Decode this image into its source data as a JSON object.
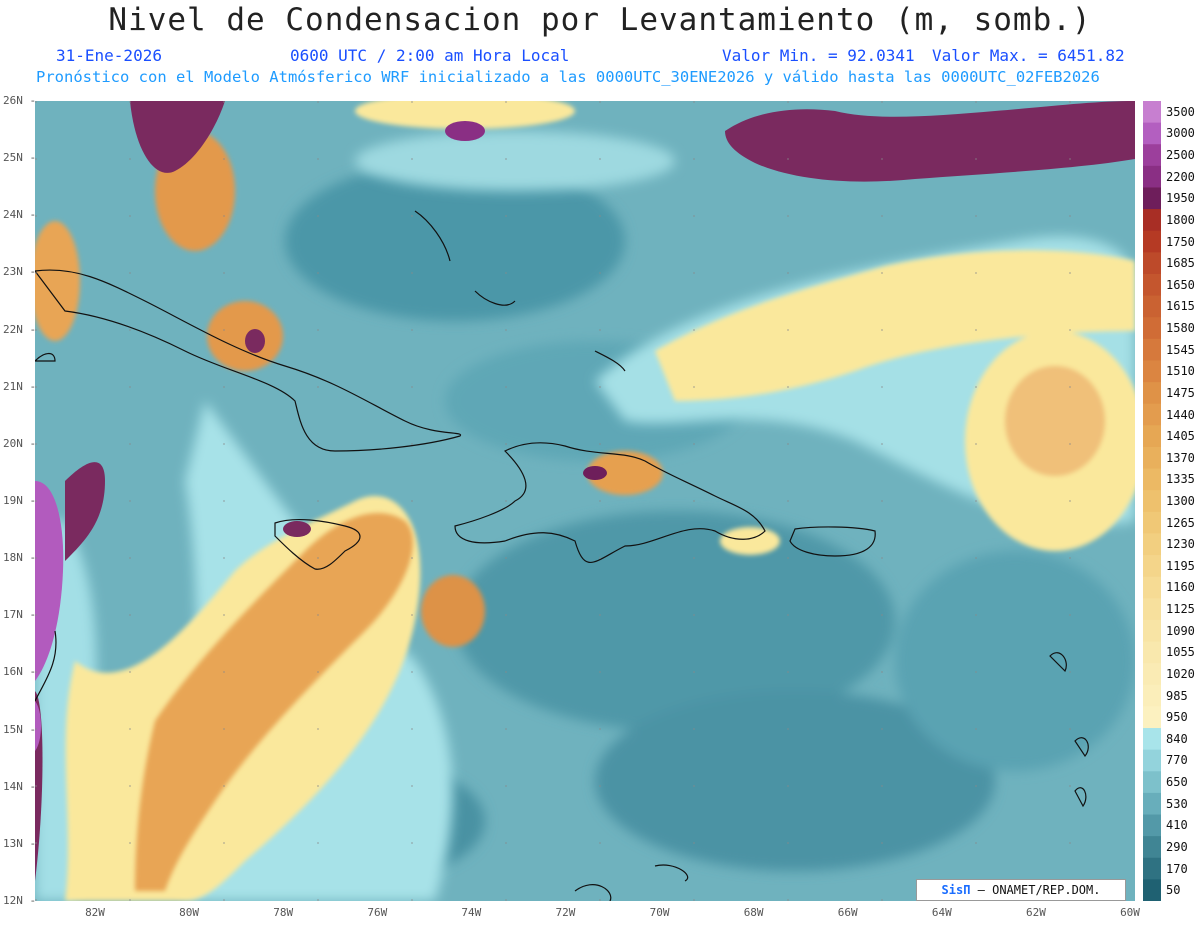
{
  "header": {
    "title": "Nivel de Condensacion por Levantamiento (m, somb.)",
    "date": "31-Ene-2026",
    "time": "0600 UTC / 2:00 am Hora Local",
    "min": "Valor Min. = 92.0341",
    "max": "Valor Max. = 6451.82",
    "forecast": "Pronóstico con el Modelo Atmósferico WRF inicializado a las 0000UTC_30ENE2026 y válido hasta las  0000UTC_02FEB2026"
  },
  "map": {
    "lat_labels": [
      "26N",
      "25N",
      "24N",
      "23N",
      "22N",
      "21N",
      "20N",
      "19N",
      "18N",
      "17N",
      "16N",
      "15N",
      "14N",
      "13N",
      "12N"
    ],
    "lon_labels": [
      "82W",
      "80W",
      "78W",
      "76W",
      "74W",
      "72W",
      "70W",
      "68W",
      "66W",
      "64W",
      "62W",
      "60W"
    ],
    "colors": {
      "low": "#2c6f80",
      "mid": "#6fb4c0",
      "cyan": "#a5e2e8",
      "yellow": "#fae89c",
      "orange": "#e6a04f",
      "brown": "#b8502a",
      "purple": "#7a2a5f",
      "violet": "#b25bbe"
    }
  },
  "legend": {
    "labels": [
      "3500",
      "3000",
      "2500",
      "2200",
      "1950",
      "1800",
      "1750",
      "1685",
      "1650",
      "1615",
      "1580",
      "1545",
      "1510",
      "1475",
      "1440",
      "1405",
      "1370",
      "1335",
      "1300",
      "1265",
      "1230",
      "1195",
      "1160",
      "1125",
      "1090",
      "1055",
      "1020",
      "985",
      "950",
      "840",
      "770",
      "650",
      "530",
      "410",
      "290",
      "170",
      "50"
    ],
    "colors": [
      "#c77fd0",
      "#b35fc0",
      "#9c3f9c",
      "#8a2f84",
      "#6e1e5b",
      "#a82e25",
      "#b53a24",
      "#bd4a2a",
      "#c4562e",
      "#ca6232",
      "#d06c36",
      "#d6793c",
      "#db8541",
      "#df9247",
      "#e39c4e",
      "#e6a754",
      "#e9b05c",
      "#ecb964",
      "#eec16d",
      "#f0c876",
      "#f2cf80",
      "#f4d58a",
      "#f6db94",
      "#f7e09d",
      "#f8e4a5",
      "#f9e8ad",
      "#faebb4",
      "#fbeeba",
      "#fcf1c0",
      "#a8e4ea",
      "#93d3dc",
      "#7dc1cb",
      "#68aebb",
      "#5399a8",
      "#408594",
      "#2f7282",
      "#1f6172"
    ]
  },
  "credit": {
    "brand": "SisΠ",
    "text": "– ONAMET/REP.DOM."
  }
}
